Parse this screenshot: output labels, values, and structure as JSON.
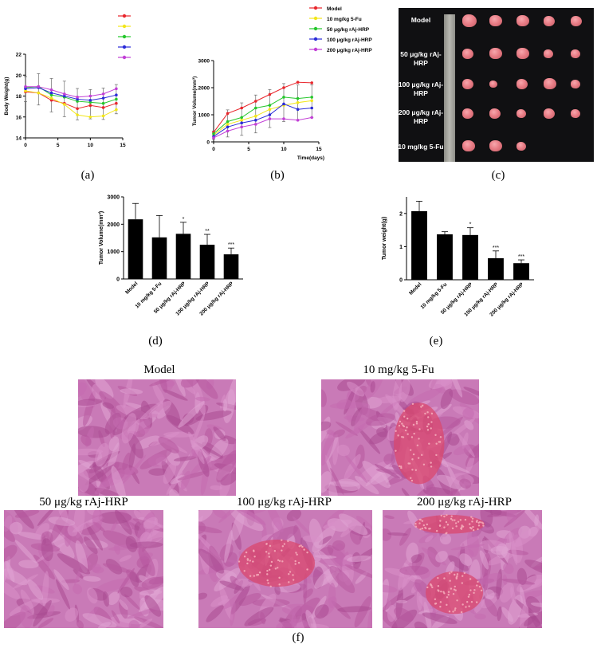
{
  "colors": {
    "model": "#e8262c",
    "fu": "#f2e61a",
    "rajhrp50": "#25c72c",
    "rajhrp100": "#2a2bd8",
    "rajhrp200": "#c23fd6"
  },
  "legend": [
    "Model",
    "10 mg/kg 5-Fu",
    "50 μg/kg rAj-HRP",
    "100 μg/kg rAj-HRP",
    "200 μg/kg rAj-HRP"
  ],
  "captions": {
    "a": "(a)",
    "b": "(b)",
    "c": "(c)",
    "d": "(d)",
    "e": "(e)",
    "f": "(f)"
  },
  "photo_labels": [
    "Model",
    "50 μg/kg rAj-HRP",
    "100 μg/kg rAj-HRP",
    "200 μg/kg rAj-HRP",
    "10 mg/kg 5-Fu"
  ],
  "histology_titles": [
    "Model",
    "10 mg/kg 5-Fu",
    "50 μg/kg rAj-HRP",
    "100 μg/kg rAj-HRP",
    "200 μg/kg rAj-HRP"
  ],
  "chart_data": [
    {
      "type": "line",
      "panel": "a",
      "xlabel": "",
      "xlabel_inline": "",
      "ylabel": "Body Weight(g)",
      "xlim": [
        0,
        15
      ],
      "ylim": [
        14,
        22
      ],
      "xticks": [
        0,
        5,
        10,
        15
      ],
      "yticks": [
        14,
        16,
        18,
        20,
        22
      ],
      "x": [
        0,
        2,
        4,
        6,
        8,
        10,
        12,
        14
      ],
      "series": [
        {
          "name": "Model",
          "values": [
            18.4,
            18.3,
            17.6,
            17.3,
            16.8,
            17.1,
            16.9,
            17.3
          ]
        },
        {
          "name": "10 mg/kg 5-Fu",
          "values": [
            18.5,
            18.3,
            17.8,
            17.2,
            16.2,
            16.0,
            16.1,
            16.7
          ]
        },
        {
          "name": "50 μg/kg rAj-HRP",
          "values": [
            18.8,
            18.9,
            18.1,
            17.9,
            17.5,
            17.4,
            17.3,
            17.7
          ]
        },
        {
          "name": "100 μg/kg rAj-HRP",
          "values": [
            18.7,
            18.8,
            18.3,
            18.0,
            17.7,
            17.6,
            17.8,
            18.1
          ]
        },
        {
          "name": "200 μg/kg rAj-HRP",
          "values": [
            18.9,
            18.9,
            18.6,
            18.2,
            17.9,
            18.0,
            18.2,
            18.7
          ]
        }
      ],
      "error": [
        1.2,
        1.5,
        1.6,
        1.7,
        1.5,
        1.4,
        1.5,
        1.4
      ]
    },
    {
      "type": "line",
      "panel": "b",
      "xlabel": "Time(days)",
      "ylabel": "Tumor Volume(mm³)",
      "xlim": [
        0,
        15
      ],
      "ylim": [
        0,
        3000
      ],
      "xticks": [
        0,
        5,
        10,
        15
      ],
      "yticks": [
        0,
        1000,
        2000,
        3000
      ],
      "x": [
        0,
        2,
        4,
        6,
        8,
        10,
        12,
        14
      ],
      "series": [
        {
          "name": "Model",
          "values": [
            350,
            1050,
            1250,
            1500,
            1750,
            2000,
            2200,
            2180
          ]
        },
        {
          "name": "10 mg/kg 5-Fu",
          "values": [
            250,
            650,
            800,
            950,
            1200,
            1350,
            1450,
            1520
          ]
        },
        {
          "name": "50 μg/kg rAj-HRP",
          "values": [
            300,
            750,
            900,
            1250,
            1350,
            1650,
            1600,
            1650
          ]
        },
        {
          "name": "100 μg/kg rAj-HRP",
          "values": [
            200,
            550,
            700,
            800,
            1000,
            1400,
            1200,
            1250
          ]
        },
        {
          "name": "200 μg/kg rAj-HRP",
          "values": [
            150,
            400,
            550,
            650,
            850,
            850,
            800,
            900
          ]
        }
      ],
      "error": [
        150,
        500,
        600,
        700,
        700,
        700,
        650,
        600
      ]
    },
    {
      "type": "bar",
      "panel": "d",
      "ylabel": "Tumor Volume(mm³)",
      "ylim": [
        0,
        3000
      ],
      "yticks": [
        0,
        1000,
        2000,
        3000
      ],
      "categories": [
        "Model",
        "10 mg/kg 5-Fu",
        "50 μg/kg rAj-HRP",
        "100 μg/kg rAj-HRP",
        "200 μg/kg rAj-HRP"
      ],
      "values": [
        2180,
        1520,
        1650,
        1250,
        900
      ],
      "errors": [
        580,
        800,
        420,
        380,
        230
      ],
      "annotations": [
        "",
        "",
        "*",
        "**",
        "***"
      ]
    },
    {
      "type": "bar",
      "panel": "e",
      "ylabel": "Tumor weight(g)",
      "ylim": [
        0,
        2.5
      ],
      "yticks": [
        0,
        1,
        2
      ],
      "categories": [
        "Model",
        "10 mg/kg 5-Fu",
        "50 μg/kg rAj-HRP",
        "100 μg/kg rAj-HRP",
        "200 μg/kg rAj-HRP"
      ],
      "values": [
        2.07,
        1.37,
        1.35,
        0.65,
        0.5
      ],
      "errors": [
        0.3,
        0.08,
        0.22,
        0.22,
        0.1
      ],
      "annotations": [
        "",
        "",
        "*",
        "***",
        "***"
      ]
    }
  ]
}
